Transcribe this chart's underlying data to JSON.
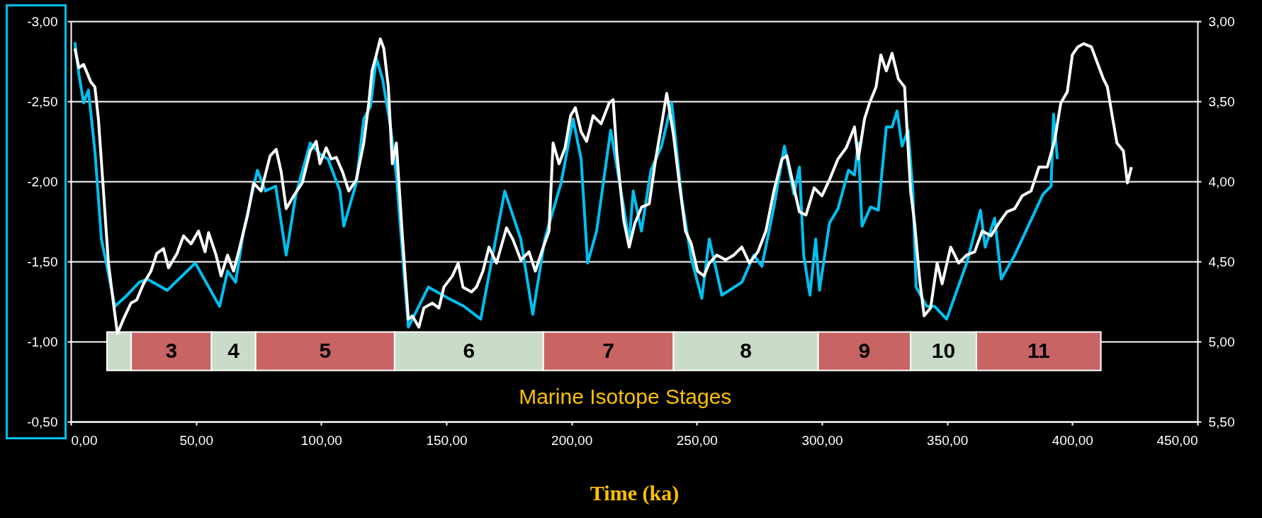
{
  "chart_data": {
    "type": "line",
    "xlabel": "Time (ka)",
    "annotations": [
      "Marine Isotope Stages"
    ],
    "grid": "y",
    "xlim": [
      0,
      450
    ],
    "xticks": [
      {
        "value": 0,
        "label": "0,00"
      },
      {
        "value": 50,
        "label": "50,00"
      },
      {
        "value": 100,
        "label": "100,00"
      },
      {
        "value": 150,
        "label": "150,00"
      },
      {
        "value": 200,
        "label": "200,00"
      },
      {
        "value": 250,
        "label": "250,00"
      },
      {
        "value": 300,
        "label": "300,00"
      },
      {
        "value": 350,
        "label": "350,00"
      },
      {
        "value": 400,
        "label": "400,00"
      },
      {
        "value": 450,
        "label": "450,00"
      }
    ],
    "ylim": [
      -0.5,
      -3
    ],
    "yticks": [
      {
        "value": -3,
        "label": "-3,00"
      },
      {
        "value": -2.5,
        "label": "-2,50"
      },
      {
        "value": -2,
        "label": "-2,00"
      },
      {
        "value": -1.5,
        "label": "-1,50"
      },
      {
        "value": -1,
        "label": "-1,00"
      },
      {
        "value": -0.5,
        "label": "-0,50"
      }
    ],
    "y2lim": [
      5.5,
      3
    ],
    "y2ticks": [
      {
        "value": 3,
        "label": "3,00"
      },
      {
        "value": 3.5,
        "label": "3,50"
      },
      {
        "value": 4,
        "label": "4,00"
      },
      {
        "value": 4.5,
        "label": "4,50"
      },
      {
        "value": 5,
        "label": "5,00"
      },
      {
        "value": 5.5,
        "label": "5,50"
      }
    ],
    "bands": [
      {
        "axis": "x",
        "from": 14.4,
        "to": 24.1,
        "color": "#c8dcc8"
      },
      {
        "axis": "x",
        "from": 24.1,
        "to": 56.2,
        "label": "3",
        "color": "#c86464"
      },
      {
        "axis": "x",
        "from": 56.2,
        "to": 73.8,
        "label": "4",
        "color": "#c8dcc8"
      },
      {
        "axis": "x",
        "from": 73.8,
        "to": 129.3,
        "label": "5",
        "color": "#c86464"
      },
      {
        "axis": "x",
        "from": 129.3,
        "to": 188.7,
        "label": "6",
        "color": "#c8dcc8"
      },
      {
        "axis": "x",
        "from": 188.7,
        "to": 240.7,
        "label": "7",
        "color": "#c86464"
      },
      {
        "axis": "x",
        "from": 240.7,
        "to": 298.5,
        "label": "8",
        "color": "#c8dcc8"
      },
      {
        "axis": "x",
        "from": 298.5,
        "to": 335.4,
        "label": "9",
        "color": "#c86464"
      },
      {
        "axis": "x",
        "from": 335.4,
        "to": 361.7,
        "label": "10",
        "color": "#c8dcc8"
      },
      {
        "axis": "x",
        "from": 361.7,
        "to": 411.4,
        "label": "11",
        "color": "#c86464"
      }
    ],
    "series": [
      {
        "color": "#00c0f0",
        "x": [
          1.6,
          3.2,
          5.1,
          7,
          9.6,
          12.2,
          14.8,
          17.6,
          22.5,
          27.3,
          30.5,
          38.5,
          49.7,
          59.4,
          62.6,
          65.8,
          69,
          74.5,
          77.7,
          81.8,
          86,
          89.9,
          95.6,
          99.5,
          102.7,
          107.5,
          109,
          114,
          117,
          119.7,
          122,
          124.5,
          127.7,
          130,
          133,
          134.8,
          138,
          142.8,
          150.8,
          157,
          163.7,
          173.3,
          179.7,
          184.5,
          189.3,
          195.8,
          200.6,
          203.8,
          206.4,
          210,
          215.6,
          220.8,
          223,
          224.6,
          227.9,
          231.7,
          235.9,
          240,
          244,
          247.8,
          252,
          255,
          260,
          268,
          272.8,
          276,
          280.8,
          285,
          288.8,
          291,
          292.7,
          295.2,
          297.5,
          299,
          303,
          306.4,
          310.6,
          313,
          314.5,
          316,
          319.4,
          322.5,
          325.7,
          328,
          330,
          332,
          334.4,
          336.3,
          337.6,
          341.8,
          345,
          349.8,
          357.8,
          363.3,
          365.2,
          369,
          371.6,
          377,
          388.3,
          391.5,
          392.5,
          394
        ],
        "values": [
          -2.87,
          -2.67,
          -2.49,
          -2.57,
          -2.19,
          -1.64,
          -1.44,
          -1.22,
          -1.29,
          -1.37,
          -1.39,
          -1.32,
          -1.49,
          -1.22,
          -1.44,
          -1.37,
          -1.69,
          -2.07,
          -1.94,
          -1.97,
          -1.54,
          -1.92,
          -2.24,
          -2.17,
          -2.14,
          -1.94,
          -1.72,
          -1.99,
          -2.39,
          -2.47,
          -2.77,
          -2.64,
          -2.34,
          -2.04,
          -1.44,
          -1.09,
          -1.19,
          -1.34,
          -1.27,
          -1.22,
          -1.14,
          -1.94,
          -1.64,
          -1.17,
          -1.64,
          -1.99,
          -2.39,
          -2.14,
          -1.49,
          -1.69,
          -2.32,
          -1.84,
          -1.62,
          -1.94,
          -1.69,
          -2.07,
          -2.22,
          -2.49,
          -1.89,
          -1.52,
          -1.27,
          -1.64,
          -1.29,
          -1.37,
          -1.54,
          -1.47,
          -1.84,
          -2.22,
          -1.92,
          -2.09,
          -1.54,
          -1.29,
          -1.64,
          -1.32,
          -1.74,
          -1.83,
          -2.07,
          -2.04,
          -2.24,
          -1.72,
          -1.84,
          -1.82,
          -2.34,
          -2.34,
          -2.44,
          -2.22,
          -2.32,
          -1.94,
          -1.34,
          -1.22,
          -1.22,
          -1.14,
          -1.49,
          -1.82,
          -1.59,
          -1.77,
          -1.39,
          -1.54,
          -1.92,
          -1.97,
          -2.42,
          -2.14
        ]
      },
      {
        "color": "#ffffff",
        "axis": "y2",
        "x": [
          1.6,
          3.2,
          5.1,
          8,
          9.6,
          11,
          12.8,
          15,
          17,
          18.6,
          21,
          24,
          26.3,
          29,
          32,
          34.3,
          37,
          39,
          42.4,
          45,
          48,
          51,
          53.6,
          55,
          58,
          60,
          62.6,
          65,
          67,
          70.6,
          73,
          76,
          79.6,
          82,
          84,
          86,
          89,
          92.4,
          95.6,
          98,
          99.5,
          102,
          104,
          106,
          108.5,
          111,
          114,
          117,
          119,
          120.3,
          122,
          123.6,
          125,
          126.8,
          128.4,
          130,
          132.5,
          134.8,
          136.4,
          139,
          141,
          144.4,
          147,
          149,
          152.4,
          154.7,
          156.6,
          160,
          162,
          164.6,
          167,
          170,
          174,
          176.5,
          179.7,
          183,
          185.5,
          188.7,
          191,
          192.6,
          195,
          197.4,
          199.6,
          201.5,
          203.8,
          206,
          208.6,
          211.8,
          215,
          216.6,
          218,
          220.8,
          223,
          225.3,
          228,
          231,
          233.6,
          236,
          238,
          240.7,
          243,
          245.5,
          247.8,
          250.3,
          252.9,
          255,
          258,
          261.5,
          264.8,
          268,
          271,
          274.4,
          277.6,
          280.8,
          284,
          286,
          288.8,
          291,
          293.6,
          296.9,
          300,
          303,
          306.4,
          309.7,
          313,
          314.5,
          317,
          319,
          321.6,
          323.5,
          325.7,
          328,
          330.5,
          333,
          335.4,
          337,
          339,
          340.8,
          343.4,
          346,
          348,
          351.4,
          354.6,
          357.8,
          361,
          364,
          367.5,
          370.7,
          373.9,
          377,
          380,
          383.5,
          386.7,
          390,
          393,
          395.4,
          398,
          400,
          402.2,
          404.5,
          407.6,
          410,
          412.4,
          414,
          415.6,
          417.8,
          420.4,
          422,
          423.6
        ],
        "values": [
          3.17,
          3.29,
          3.27,
          3.38,
          3.41,
          3.61,
          4.01,
          4.51,
          4.76,
          4.95,
          4.86,
          4.76,
          4.74,
          4.64,
          4.56,
          4.45,
          4.42,
          4.54,
          4.45,
          4.34,
          4.39,
          4.31,
          4.44,
          4.32,
          4.46,
          4.59,
          4.46,
          4.56,
          4.44,
          4.21,
          4.01,
          4.06,
          3.84,
          3.8,
          3.94,
          4.17,
          4.09,
          4.01,
          3.81,
          3.75,
          3.89,
          3.79,
          3.86,
          3.85,
          3.94,
          4.06,
          3.99,
          3.76,
          3.51,
          3.31,
          3.21,
          3.11,
          3.17,
          3.41,
          3.89,
          3.76,
          4.36,
          4.86,
          4.84,
          4.91,
          4.79,
          4.76,
          4.79,
          4.66,
          4.59,
          4.51,
          4.66,
          4.69,
          4.66,
          4.56,
          4.41,
          4.51,
          4.29,
          4.36,
          4.49,
          4.44,
          4.56,
          4.41,
          4.31,
          3.76,
          3.89,
          3.79,
          3.59,
          3.54,
          3.69,
          3.75,
          3.59,
          3.64,
          3.51,
          3.49,
          3.81,
          4.24,
          4.41,
          4.26,
          4.16,
          4.14,
          3.86,
          3.64,
          3.45,
          3.71,
          4.01,
          4.31,
          4.39,
          4.56,
          4.59,
          4.51,
          4.46,
          4.49,
          4.46,
          4.41,
          4.51,
          4.44,
          4.31,
          4.06,
          3.86,
          3.84,
          4.04,
          4.19,
          4.21,
          4.04,
          4.09,
          3.99,
          3.86,
          3.79,
          3.66,
          3.86,
          3.61,
          3.51,
          3.41,
          3.21,
          3.31,
          3.2,
          3.36,
          3.41,
          4.06,
          4.26,
          4.61,
          4.84,
          4.79,
          4.51,
          4.64,
          4.41,
          4.51,
          4.46,
          4.44,
          4.31,
          4.34,
          4.26,
          4.19,
          4.17,
          4.09,
          4.06,
          3.91,
          3.91,
          3.74,
          3.51,
          3.44,
          3.21,
          3.16,
          3.14,
          3.16,
          3.26,
          3.36,
          3.41,
          3.56,
          3.76,
          3.81,
          4.01,
          3.91
        ]
      }
    ]
  }
}
